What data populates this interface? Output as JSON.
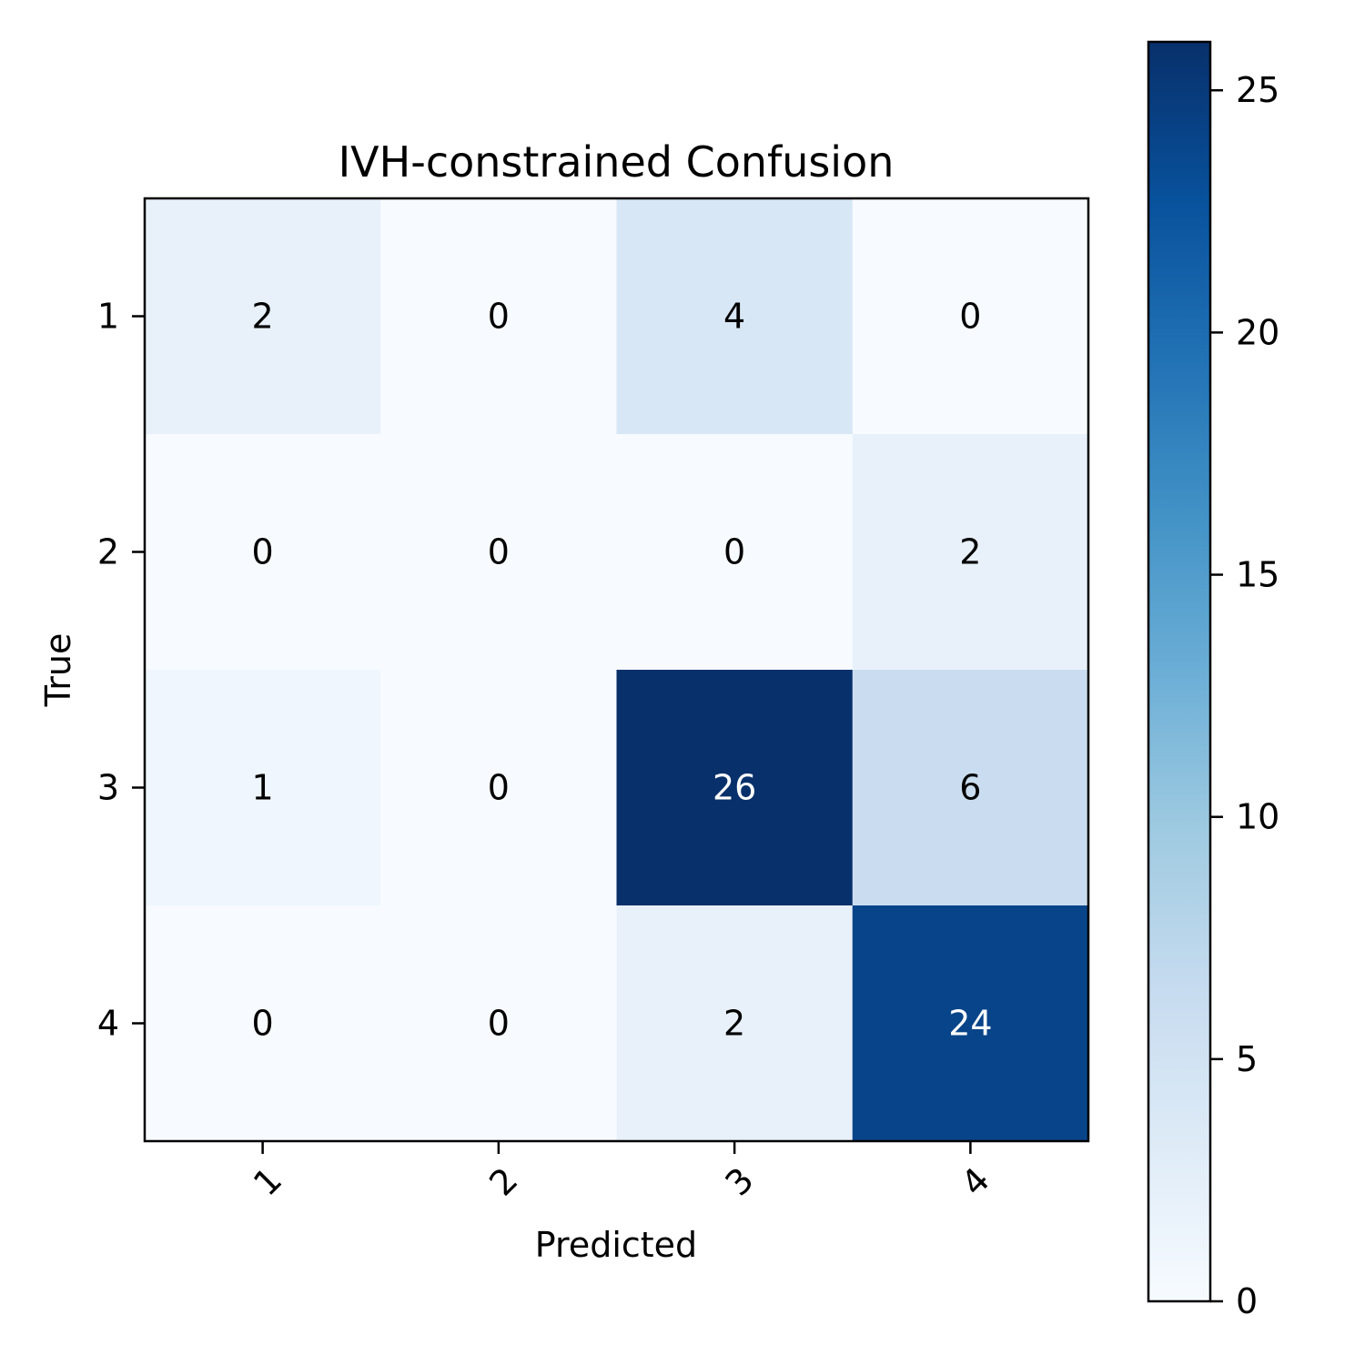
{
  "chart_data": {
    "type": "heatmap",
    "title": "IVH-constrained Confusion",
    "xlabel": "Predicted",
    "ylabel": "True",
    "x_categories": [
      "1",
      "2",
      "3",
      "4"
    ],
    "y_categories": [
      "1",
      "2",
      "3",
      "4"
    ],
    "matrix": [
      [
        2,
        0,
        4,
        0
      ],
      [
        0,
        0,
        0,
        2
      ],
      [
        1,
        0,
        26,
        6
      ],
      [
        0,
        0,
        2,
        24
      ]
    ],
    "colormap": "Blues",
    "color_range": [
      0,
      26
    ],
    "colorbar_ticks": [
      "0",
      "5",
      "10",
      "15",
      "20",
      "25"
    ],
    "colorbar_tick_values": [
      0,
      5,
      10,
      15,
      20,
      25
    ],
    "x_tick_rotation": 45,
    "text_color_light": "#ffffff",
    "text_color_dark": "#000000"
  }
}
